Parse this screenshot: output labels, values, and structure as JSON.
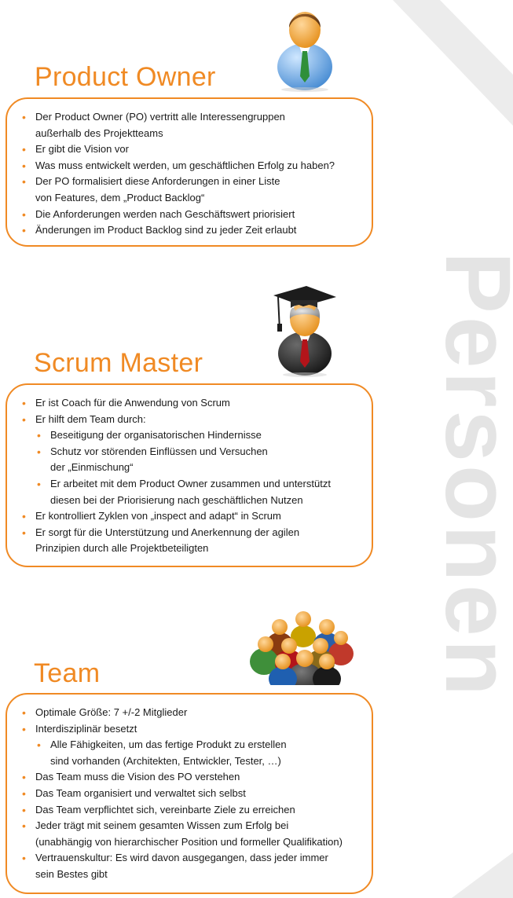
{
  "side_word": "Personen",
  "colors": {
    "accent": "#f08a24",
    "watermark": "#e4e4e4"
  },
  "sections": [
    {
      "title": "Product Owner",
      "icon": "businessman-icon",
      "items": [
        "Der Product Owner (PO) vertritt alle Interessengruppen",
        "außerhalb des Projektteams",
        "Er gibt die Vision vor",
        "Was muss entwickelt werden, um geschäftlichen Erfolg zu haben?",
        "Der PO formalisiert diese Anforderungen in einer Liste",
        "von Features, dem „Product Backlog“",
        "Die Anforderungen werden nach Geschäftswert priorisiert",
        "Änderungen im Product Backlog sind zu jeder Zeit erlaubt"
      ]
    },
    {
      "title": "Scrum Master",
      "icon": "graduate-icon",
      "items": [
        "Er ist Coach für die Anwendung von Scrum",
        "Er hilft dem Team durch:",
        "Beseitigung der organisatorischen Hindernisse",
        "Schutz vor störenden Einflüssen und Versuchen",
        "der „Einmischung“",
        "Er arbeitet mit dem Product Owner zusammen und unterstützt",
        "diesen bei der Priorisierung nach geschäftlichen Nutzen",
        "Er kontrolliert Zyklen von „inspect and adapt“ in Scrum",
        "Er sorgt für die Unterstützung und Anerkennung der agilen",
        "Prinzipien durch alle Projektbeteiligten"
      ]
    },
    {
      "title": "Team",
      "icon": "team-group-icon",
      "items": [
        "Optimale Größe: 7 +/-2 Mitglieder",
        "Interdisziplinär besetzt",
        "Alle Fähigkeiten, um das fertige Produkt zu erstellen",
        "sind vorhanden (Architekten, Entwickler, Tester, …)",
        "Das Team muss die Vision des PO verstehen",
        "Das Team organisiert und verwaltet sich selbst",
        "Das Team verpflichtet sich, vereinbarte Ziele zu erreichen",
        "Jeder trägt mit seinem gesamten Wissen zum Erfolg bei",
        "(unabhängig von hierarchischer Position und formeller Qualifikation)",
        "Vertrauenskultur: Es wird davon ausgegangen, dass jeder immer",
        "sein Bestes gibt"
      ]
    }
  ]
}
